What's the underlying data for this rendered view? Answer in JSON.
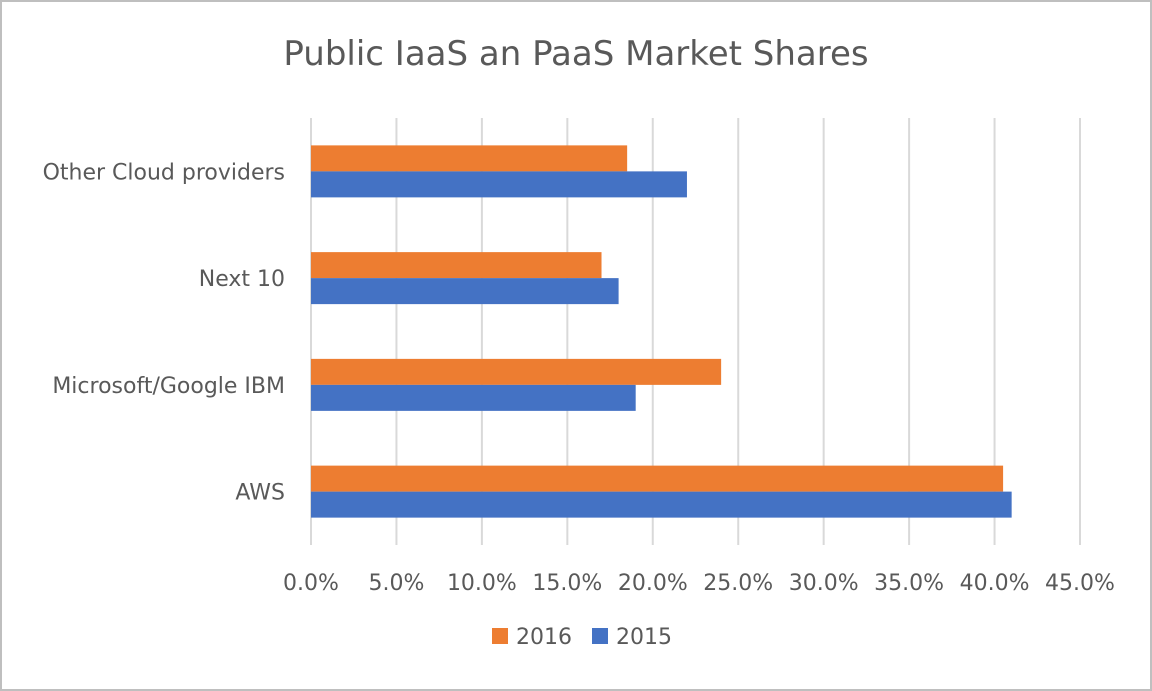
{
  "chart_data": {
    "type": "bar",
    "orientation": "horizontal",
    "title": "Public IaaS an PaaS Market Shares",
    "categories": [
      "AWS",
      "Microsoft/Google IBM",
      "Next 10",
      "Other Cloud providers"
    ],
    "series": [
      {
        "name": "2016",
        "color": "#ed7d31",
        "values": [
          40.5,
          24.0,
          17.0,
          18.5
        ]
      },
      {
        "name": "2015",
        "color": "#4472c4",
        "values": [
          41.0,
          19.0,
          18.0,
          22.0
        ]
      }
    ],
    "xlim": [
      0,
      45
    ],
    "xticks": [
      0,
      5,
      10,
      15,
      20,
      25,
      30,
      35,
      40,
      45
    ],
    "xtick_labels": [
      "0.0%",
      "5.0%",
      "10.0%",
      "15.0%",
      "20.0%",
      "25.0%",
      "30.0%",
      "35.0%",
      "40.0%",
      "45.0%"
    ],
    "legend": {
      "position": "bottom",
      "entries": [
        "2016",
        "2015"
      ]
    },
    "grid": "vertical"
  }
}
